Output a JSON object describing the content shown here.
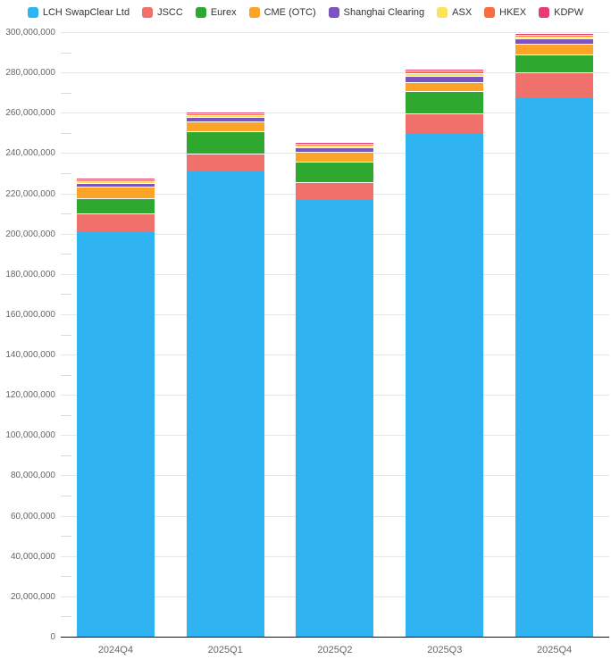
{
  "colors": {
    "background": "#ffffff",
    "gridline": "#e6e6e6",
    "axis_line": "#111111",
    "tick_text": "#666666",
    "legend_text": "#333333",
    "segment_border": "#ffffff"
  },
  "legend": {
    "position": "top",
    "items": [
      {
        "label": "LCH SwapClear Ltd",
        "color": "#30b4f1"
      },
      {
        "label": "JSCC",
        "color": "#f0706b"
      },
      {
        "label": "Eurex",
        "color": "#2ea82e"
      },
      {
        "label": "CME (OTC)",
        "color": "#fba428"
      },
      {
        "label": "Shanghai Clearing",
        "color": "#7c53c3"
      },
      {
        "label": "ASX",
        "color": "#fbe45b"
      },
      {
        "label": "HKEX",
        "color": "#f96b40"
      },
      {
        "label": "KDPW",
        "color": "#e83a75"
      }
    ]
  },
  "chart_data": {
    "type": "bar",
    "stacked": true,
    "title": "",
    "xlabel": "",
    "ylabel": "",
    "grid": true,
    "legend_position": "top",
    "categories": [
      "2024Q4",
      "2025Q1",
      "2025Q2",
      "2025Q3",
      "2025Q4"
    ],
    "series": [
      {
        "name": "LCH SwapClear Ltd",
        "color": "#30b4f1",
        "values": [
          201300000,
          231300000,
          217100000,
          250500000,
          268700000
        ]
      },
      {
        "name": "JSCC",
        "color": "#f0706b",
        "values": [
          9400000,
          9000000,
          9000000,
          9600000,
          13100000
        ]
      },
      {
        "name": "Eurex",
        "color": "#2ea82e",
        "values": [
          7400000,
          10900000,
          10100000,
          11100000,
          8900000
        ]
      },
      {
        "name": "CME (OTC)",
        "color": "#fba428",
        "values": [
          5500000,
          4900000,
          5000000,
          4600000,
          5300000
        ]
      },
      {
        "name": "Shanghai Clearing",
        "color": "#7c53c3",
        "values": [
          2100000,
          2300000,
          2200000,
          3000000,
          2400000
        ]
      },
      {
        "name": "ASX",
        "color": "#fbe45b",
        "values": [
          900000,
          900000,
          900000,
          1200000,
          900000
        ]
      },
      {
        "name": "HKEX",
        "color": "#f96b40",
        "values": [
          800000,
          900000,
          900000,
          1200000,
          900000
        ]
      },
      {
        "name": "KDPW",
        "color": "#e83a75",
        "values": [
          400000,
          600000,
          700000,
          1200000,
          1000000
        ]
      }
    ],
    "stack_totals": [
      227800000,
      260800000,
      245900000,
      282400000,
      301200000
    ],
    "yaxis": {
      "min": 0,
      "max": 300000000,
      "major_step": 20000000,
      "minor_step": 10000000,
      "tick_labels": [
        "0",
        "20,000,000",
        "40,000,000",
        "60,000,000",
        "80,000,000",
        "100,000,000",
        "120,000,000",
        "140,000,000",
        "160,000,000",
        "180,000,000",
        "200,000,000",
        "220,000,000",
        "240,000,000",
        "260,000,000",
        "280,000,000",
        "300,000,000"
      ]
    }
  }
}
